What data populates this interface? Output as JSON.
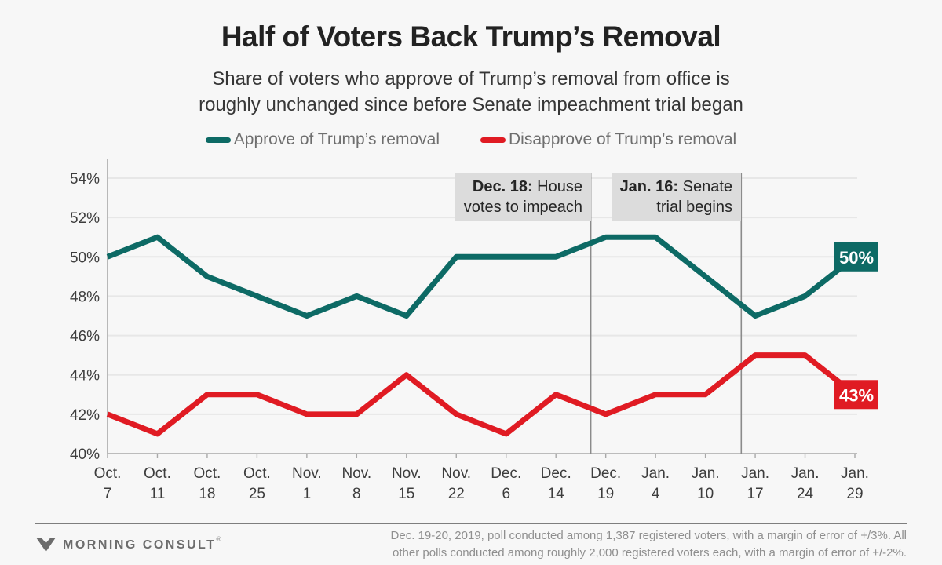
{
  "header": {
    "title": "Half of Voters Back Trump’s Removal",
    "subtitle_line1": "Share of voters who approve of Trump’s removal from office is",
    "subtitle_line2": "roughly unchanged since before Senate impeachment trial began"
  },
  "colors": {
    "approve": "#0d6a65",
    "disapprove": "#e01b23",
    "grid": "#e7e7e7",
    "axis": "#a9a9a9",
    "axis_text": "#3d3d3d",
    "annotation_line": "#8b8b8b",
    "annotation_bg": "#dcdcdc",
    "background": "#f7f7f7"
  },
  "chart_data": {
    "type": "line",
    "title": "Half of Voters Back Trump’s Removal",
    "categories": [
      "Oct. 7",
      "Oct. 11",
      "Oct. 18",
      "Oct. 25",
      "Nov. 1",
      "Nov. 8",
      "Nov. 15",
      "Nov. 22",
      "Dec. 6",
      "Dec. 14",
      "Dec. 19",
      "Jan. 4",
      "Jan. 10",
      "Jan. 17",
      "Jan. 24",
      "Jan. 29"
    ],
    "series": [
      {
        "name": "Approve of Trump’s removal",
        "color": "#0d6a65",
        "values": [
          50,
          51,
          49,
          48,
          47,
          48,
          47,
          50,
          50,
          50,
          51,
          51,
          49,
          47,
          48,
          50
        ],
        "end_label": "50%"
      },
      {
        "name": "Disapprove of Trump’s removal",
        "color": "#e01b23",
        "values": [
          42,
          41,
          43,
          43,
          42,
          42,
          44,
          42,
          41,
          43,
          42,
          43,
          43,
          45,
          45,
          43
        ],
        "end_label": "43%"
      }
    ],
    "ylim": [
      40,
      55
    ],
    "yticks": [
      40,
      42,
      44,
      46,
      48,
      50,
      52,
      54
    ],
    "ytick_suffix": "%",
    "grid": true,
    "legend_position": "top",
    "annotations": [
      {
        "x_index": 9.7,
        "bold": "Dec. 18:",
        "line1_rest": " House",
        "line2": "votes to impeach"
      },
      {
        "x_index": 12.72,
        "bold": "Jan. 16:",
        "line1_rest": " Senate",
        "line2": "trial begins"
      }
    ]
  },
  "footer": {
    "brand": "MORNING CONSULT",
    "registered": "®",
    "source_line1": "Dec. 19-20, 2019, poll conducted among 1,387 registered voters, with a margin of error of +/3%. All",
    "source_line2": "other polls conducted among roughly 2,000 registered voters each, with a margin of error of +/-2%."
  }
}
